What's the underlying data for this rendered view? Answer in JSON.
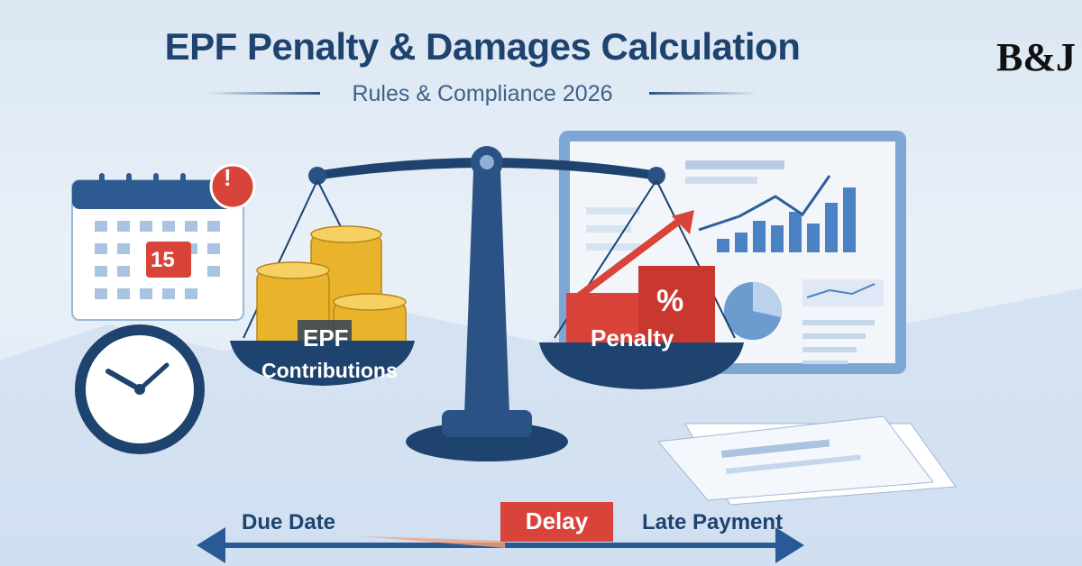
{
  "header": {
    "title": "EPF Penalty & Damages Calculation",
    "subtitle": "Rules & Compliance 2026"
  },
  "logo": {
    "text": "B&J"
  },
  "calendar": {
    "date": "15",
    "alert_icon": "exclamation-icon"
  },
  "scale": {
    "left_label_line1": "EPF",
    "left_label_line2": "Contributions",
    "right_label": "Penalty",
    "right_symbol": "%"
  },
  "timeline": {
    "start_label": "Due Date",
    "middle_label": "Delay",
    "end_label": "Late Payment"
  },
  "colors": {
    "navy": "#1e436e",
    "red": "#d8443a",
    "gold": "#e9b42c",
    "accent_blue": "#4a82c3"
  }
}
